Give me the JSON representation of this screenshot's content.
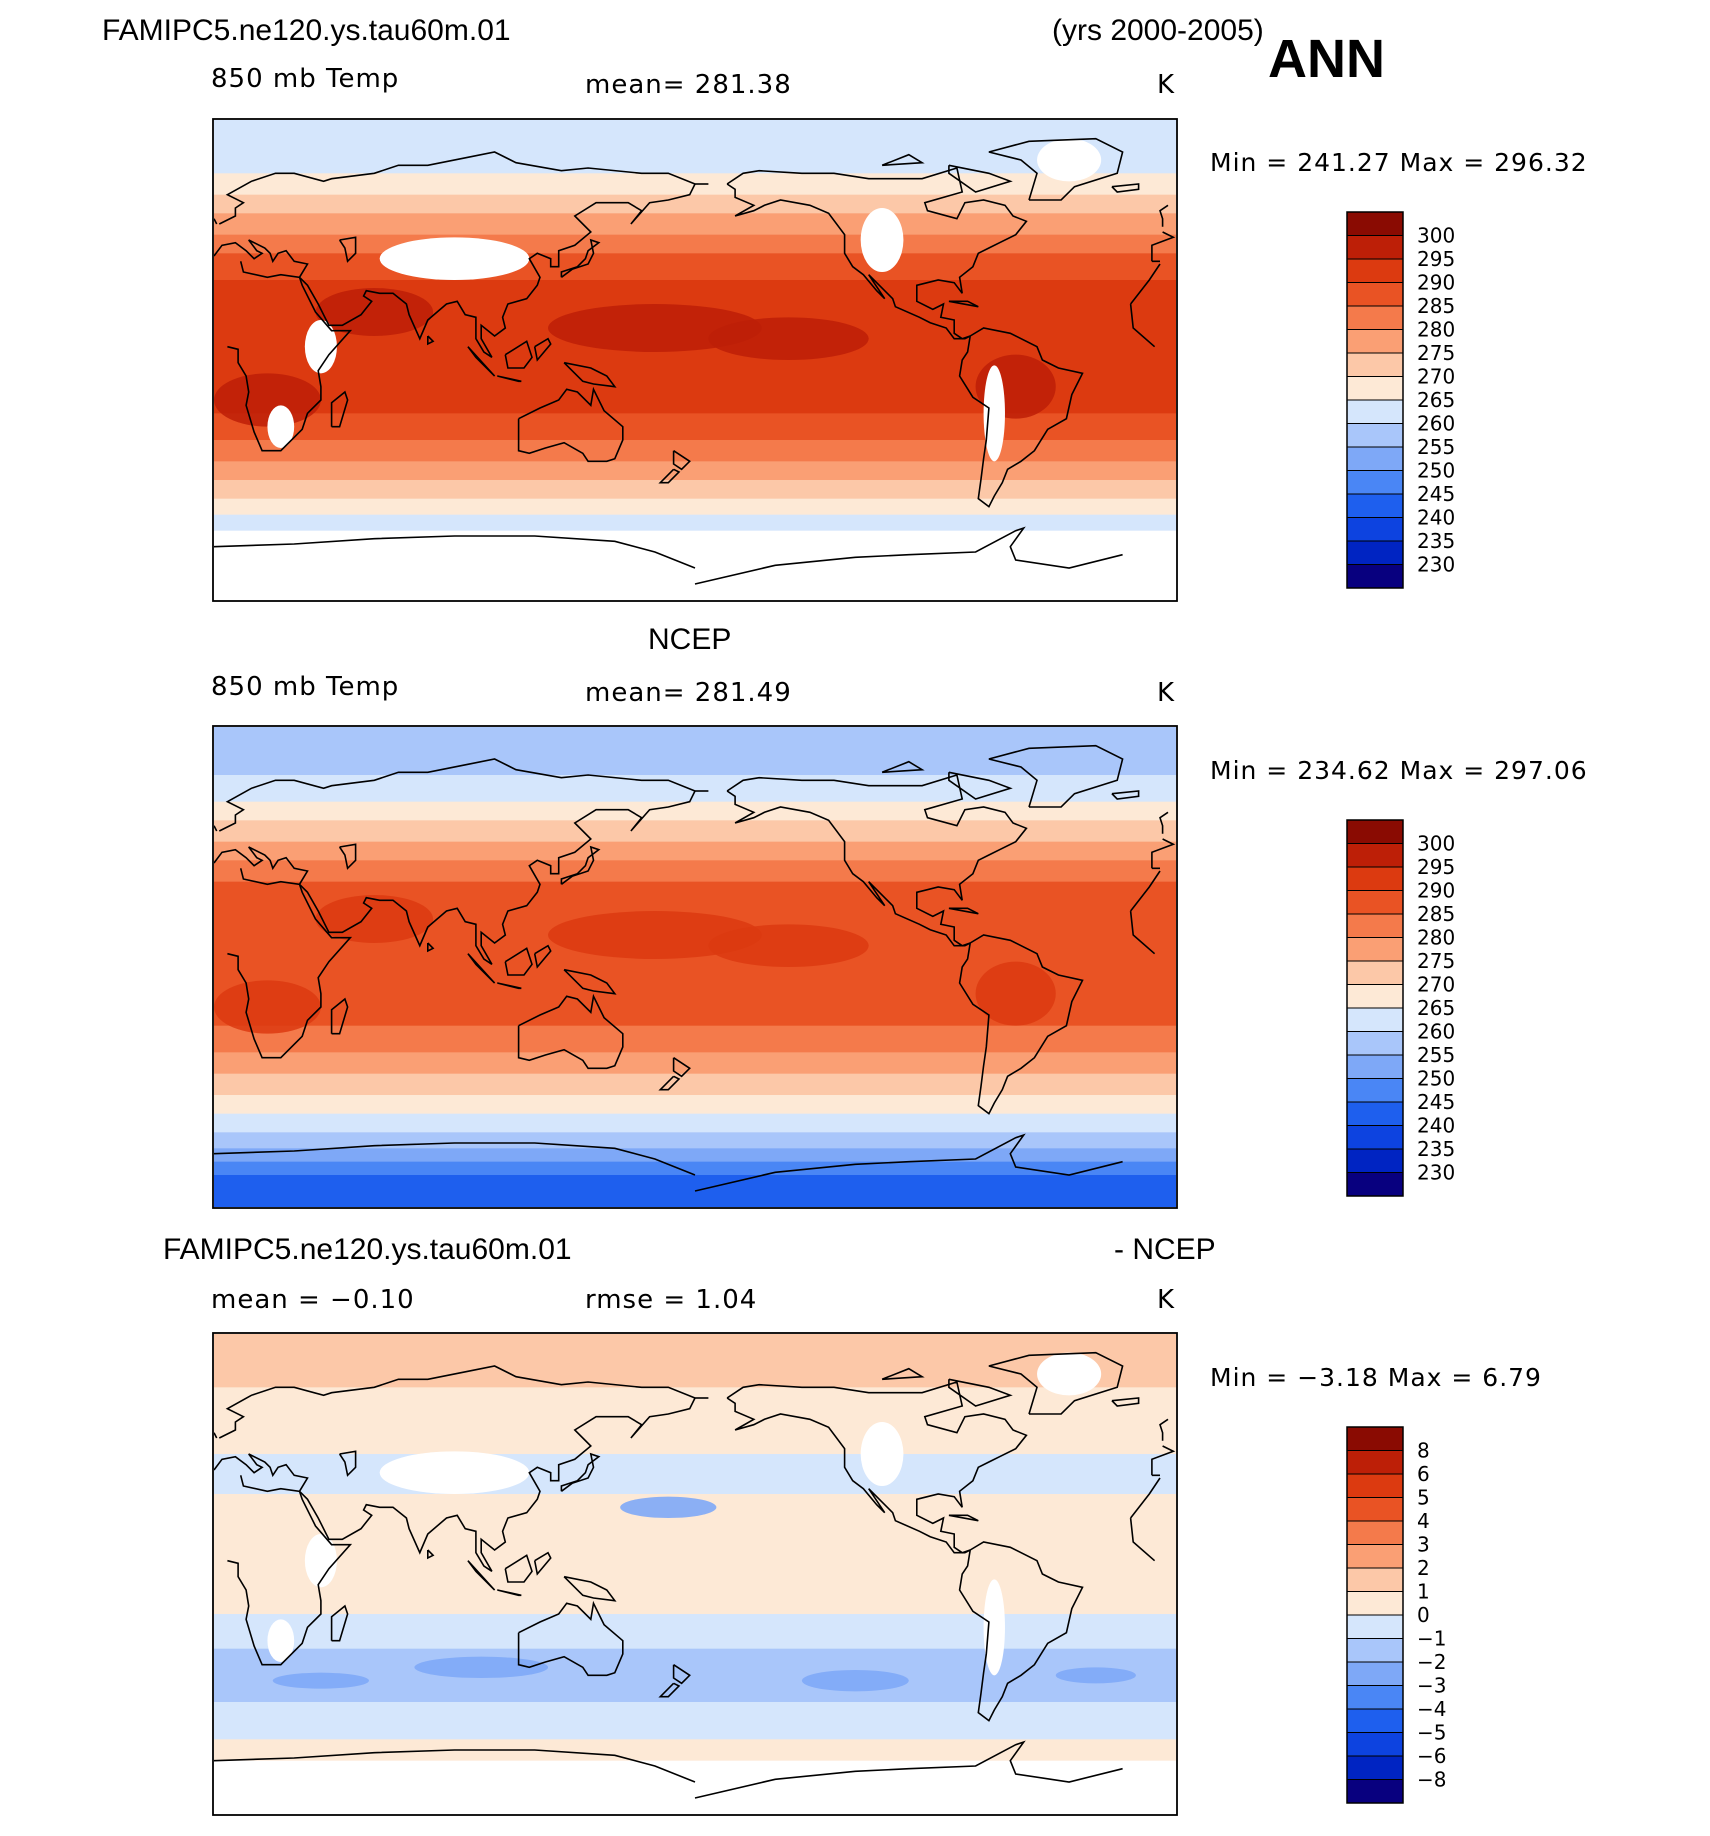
{
  "header": {
    "case_name": "FAMIPC5.ne120.ys.tau60m.01",
    "years": "(yrs 2000-2005)",
    "season": "ANN"
  },
  "colors": {
    "abs_scale": [
      "#08007f",
      "#0024c2",
      "#0d43e0",
      "#1e5fee",
      "#4a86f5",
      "#7ea8f7",
      "#a9c6fa",
      "#d5e6fc",
      "#fde9d6",
      "#fcc8a8",
      "#fa9f74",
      "#f47a4b",
      "#e95324",
      "#dc3a10",
      "#bd1f07",
      "#8a0b02"
    ],
    "diff_scale": [
      "#08007f",
      "#0024c2",
      "#0d43e0",
      "#1e5fee",
      "#4a86f5",
      "#7ea8f7",
      "#a9c6fa",
      "#d5e6fc",
      "#fde9d6",
      "#fcc8a8",
      "#fa9f74",
      "#f47a4b",
      "#e95324",
      "#dc3a10",
      "#bd1f07",
      "#8a0b02"
    ],
    "missing": "#ffffff",
    "coastline": "#000000"
  },
  "panels": [
    {
      "id": "model",
      "title": "",
      "variable": "850 mb Temp",
      "stat_text": "mean=  281.38",
      "units": "K",
      "minmax": "Min  =  241.27  Max  =  296.32",
      "colorbar_labels": [
        "300",
        "295",
        "290",
        "285",
        "280",
        "275",
        "270",
        "265",
        "260",
        "255",
        "250",
        "245",
        "240",
        "235",
        "230"
      ],
      "palette": "abs_scale",
      "style": "model"
    },
    {
      "id": "obs",
      "title": "NCEP",
      "variable": "850 mb Temp",
      "stat_text": "mean=  281.49",
      "units": "K",
      "minmax": "Min  =  234.62  Max  =  297.06",
      "colorbar_labels": [
        "300",
        "295",
        "290",
        "285",
        "280",
        "275",
        "270",
        "265",
        "260",
        "255",
        "250",
        "245",
        "240",
        "235",
        "230"
      ],
      "palette": "abs_scale",
      "style": "obs"
    },
    {
      "id": "diff",
      "title_left": "FAMIPC5.ne120.ys.tau60m.01",
      "title_right": "- NCEP",
      "variable": "mean  =   −0.10",
      "stat_text": "rmse  =     1.04",
      "units": "K",
      "minmax": "Min  =    −3.18  Max  =      6.79",
      "colorbar_labels": [
        "8",
        "6",
        "5",
        "4",
        "3",
        "2",
        "1",
        "0",
        "−1",
        "−2",
        "−3",
        "−4",
        "−5",
        "−6",
        "−8"
      ],
      "palette": "diff_scale",
      "style": "diff"
    }
  ]
}
